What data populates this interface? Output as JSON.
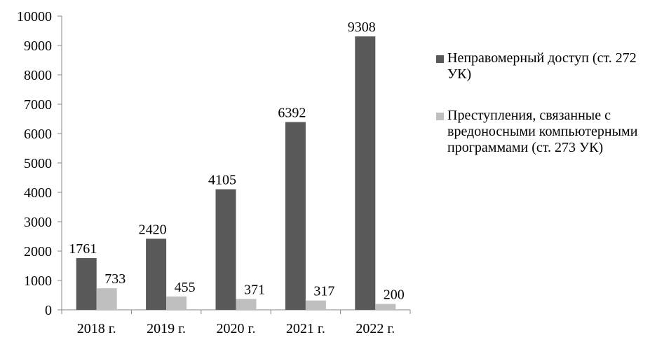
{
  "chart_data": {
    "type": "bar",
    "categories": [
      "2018 г.",
      "2019 г.",
      "2020 г.",
      "2021 г.",
      "2022 г."
    ],
    "series": [
      {
        "name": "Неправомерный доступ (ст. 272 УК)",
        "color": "#595959",
        "values": [
          1761,
          2420,
          4105,
          6392,
          9308
        ]
      },
      {
        "name": "Преступления, связанные с вредоносными компьютерными программами (ст. 273 УК)",
        "color": "#bfbfbf",
        "values": [
          733,
          455,
          371,
          317,
          200
        ]
      }
    ],
    "ylim": [
      0,
      10000
    ],
    "yticks": [
      0,
      1000,
      2000,
      3000,
      4000,
      5000,
      6000,
      7000,
      8000,
      9000,
      10000
    ],
    "legend": "right"
  }
}
